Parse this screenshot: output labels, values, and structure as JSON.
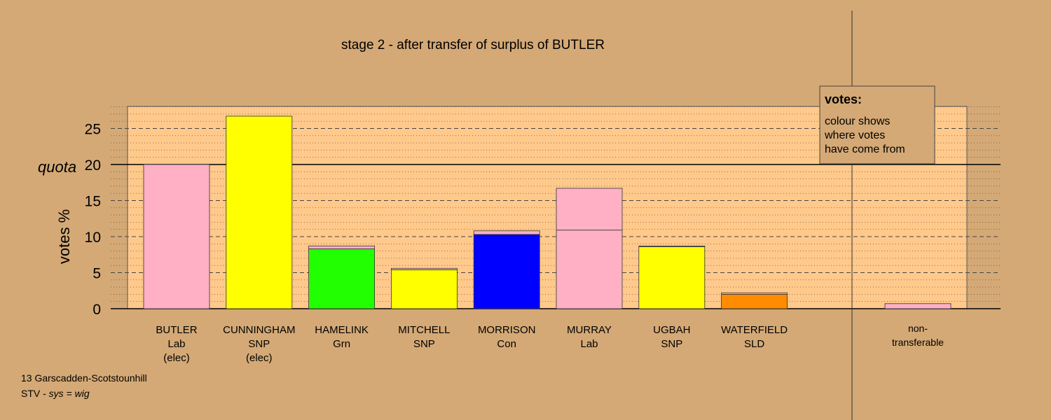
{
  "chart_data": {
    "type": "bar",
    "title": "stage 2 - after transfer of surplus of BUTLER",
    "ylabel": "votes %",
    "ylim": [
      0,
      28
    ],
    "yticks": [
      0,
      5,
      10,
      15,
      20,
      25
    ],
    "quota_label": "quota",
    "quota": 20,
    "candidates": [
      {
        "name": "BUTLER",
        "party": "Lab",
        "status": "(elec)",
        "segments": [
          {
            "value": 20.0,
            "color": "#ffb0c4"
          }
        ]
      },
      {
        "name": "CUNNINGHAM",
        "party": "SNP",
        "status": "(elec)",
        "segments": [
          {
            "value": 26.7,
            "color": "#ffff00"
          }
        ]
      },
      {
        "name": "HAMELINK",
        "party": "Grn",
        "status": "",
        "segments": [
          {
            "value": 8.3,
            "color": "#22ff00"
          },
          {
            "value": 0.4,
            "color": "#ffb0c4"
          }
        ]
      },
      {
        "name": "MITCHELL",
        "party": "SNP",
        "status": "",
        "segments": [
          {
            "value": 5.4,
            "color": "#ffff00"
          },
          {
            "value": 0.2,
            "color": "#ffb0c4"
          }
        ]
      },
      {
        "name": "MORRISON",
        "party": "Con",
        "status": "",
        "segments": [
          {
            "value": 10.3,
            "color": "#0000ff"
          },
          {
            "value": 0.5,
            "color": "#ffb0c4"
          }
        ]
      },
      {
        "name": "MURRAY",
        "party": "Lab",
        "status": "",
        "segments": [
          {
            "value": 10.9,
            "color": "#ffb0c4"
          },
          {
            "value": 5.8,
            "color": "#ffb0c4"
          }
        ]
      },
      {
        "name": "UGBAH",
        "party": "SNP",
        "status": "",
        "segments": [
          {
            "value": 8.6,
            "color": "#ffff00"
          },
          {
            "value": 0.1,
            "color": "#ffb0c4"
          }
        ]
      },
      {
        "name": "WATERFIELD",
        "party": "SLD",
        "status": "",
        "segments": [
          {
            "value": 2.0,
            "color": "#ff8c00"
          },
          {
            "value": 0.2,
            "color": "#ffb0c4"
          }
        ]
      }
    ],
    "nontransferable": {
      "label_line1": "non-",
      "label_line2": "transferable",
      "segments": [
        {
          "value": 0.7,
          "color": "#ffb0c4"
        }
      ]
    },
    "legend": {
      "title": "votes:",
      "lines": [
        "colour shows",
        "where votes",
        "have come from"
      ],
      "position": "top-right"
    },
    "colors": {
      "plot_bg": "#ffc98b",
      "outer_bg": "#d4a976",
      "legend_bg": "#d4a976"
    }
  },
  "footer": {
    "constituency": "13 Garscadden-Scotstounhill",
    "system_prefix": "STV - ",
    "system_italic": "sys = wig"
  }
}
